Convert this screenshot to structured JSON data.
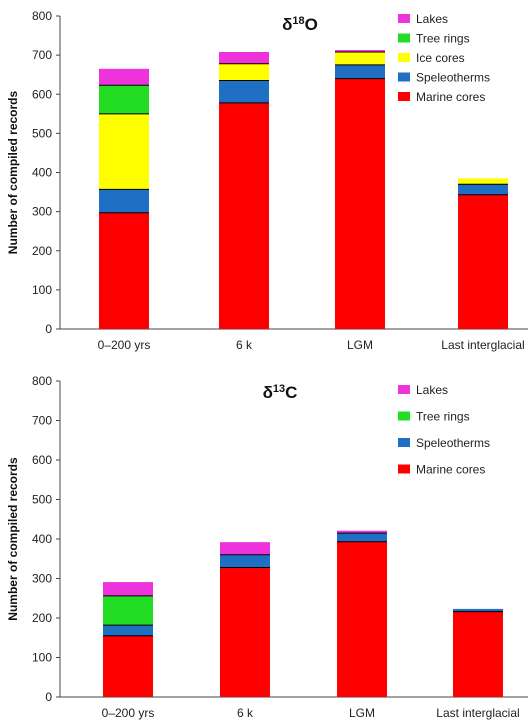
{
  "chart_data": [
    {
      "type": "bar",
      "stacked": true,
      "title": "δ18O",
      "title_parts": {
        "prefix": "δ",
        "sup": "18",
        "suffix": "O"
      },
      "xlabel": "",
      "ylabel": "Number of compiled records",
      "ylim": [
        0,
        800
      ],
      "yticks": [
        "0",
        "100",
        "200",
        "300",
        "400",
        "500",
        "600",
        "700",
        "800"
      ],
      "categories": [
        "0–200 yrs",
        "6 k",
        "LGM",
        "Last interglacial"
      ],
      "series": [
        {
          "name": "Marine cores",
          "color": "#ff0000",
          "values": [
            297,
            578,
            640,
            343
          ]
        },
        {
          "name": "Speleotherms",
          "color": "#1f6fc5",
          "values": [
            60,
            57,
            35,
            27
          ]
        },
        {
          "name": "Ice cores",
          "color": "#ffff00",
          "values": [
            193,
            43,
            33,
            15
          ]
        },
        {
          "name": "Tree rings",
          "color": "#22dd22",
          "values": [
            73,
            0,
            0,
            0
          ]
        },
        {
          "name": "Lakes",
          "color": "#ee33dd",
          "values": [
            42,
            30,
            5,
            0
          ]
        }
      ],
      "legend": [
        "Lakes",
        "Tree rings",
        "Ice cores",
        "Speleotherms",
        "Marine cores"
      ],
      "legend_position": "top-right",
      "grid": false
    },
    {
      "type": "bar",
      "stacked": true,
      "title": "δ13C",
      "title_parts": {
        "prefix": "δ",
        "sup": "13",
        "suffix": "C"
      },
      "xlabel": "",
      "ylabel": "Number of compiled records",
      "ylim": [
        0,
        800
      ],
      "yticks": [
        "0",
        "100",
        "200",
        "300",
        "400",
        "500",
        "600",
        "700",
        "800"
      ],
      "categories": [
        "0–200 yrs",
        "6 k",
        "LGM",
        "Last interglacial"
      ],
      "series": [
        {
          "name": "Marine cores",
          "color": "#ff0000",
          "values": [
            155,
            328,
            393,
            216
          ]
        },
        {
          "name": "Speleotherms",
          "color": "#1f6fc5",
          "values": [
            27,
            32,
            22,
            7
          ]
        },
        {
          "name": "Tree rings",
          "color": "#22dd22",
          "values": [
            74,
            0,
            0,
            0
          ]
        },
        {
          "name": "Lakes",
          "color": "#ee33dd",
          "values": [
            35,
            32,
            6,
            0
          ]
        }
      ],
      "legend": [
        "Lakes",
        "Tree rings",
        "Speleotherms",
        "Marine cores"
      ],
      "legend_position": "top-right",
      "grid": false
    }
  ]
}
